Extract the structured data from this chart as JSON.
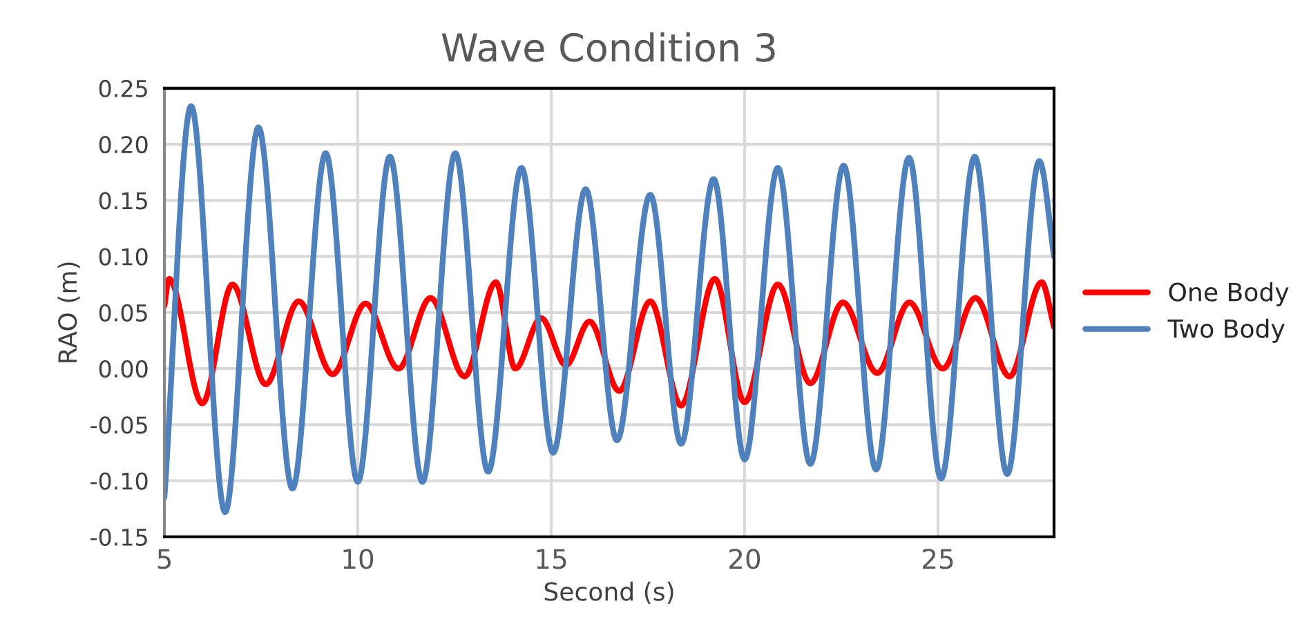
{
  "chart_data": {
    "type": "line",
    "title": "Wave Condition 3",
    "xlabel": "Second (s)",
    "ylabel": "RAO (m)",
    "xlim": [
      5,
      28
    ],
    "xticks": [
      5,
      10,
      15,
      20,
      25
    ],
    "ylim": [
      -0.15,
      0.25
    ],
    "yticks": [
      {
        "value": -0.15,
        "label": "-0.15"
      },
      {
        "value": -0.1,
        "label": "-0.10"
      },
      {
        "value": -0.05,
        "label": "-0.05"
      },
      {
        "value": 0,
        "label": "0.00"
      },
      {
        "value": 0.05,
        "label": "0.05"
      },
      {
        "value": 0.1,
        "label": "0.10"
      },
      {
        "value": 0.15,
        "label": "0.15"
      },
      {
        "value": 0.2,
        "label": "0.20"
      },
      {
        "value": 0.25,
        "label": "0.25"
      }
    ],
    "grid": true,
    "legend": "right",
    "marker": "none",
    "line_style": "solid",
    "series": [
      {
        "name": "One Body",
        "color": "#ff0000",
        "x": [
          5.0,
          5.12,
          5.98,
          6.76,
          7.62,
          8.47,
          9.35,
          10.2,
          11.05,
          11.88,
          12.76,
          13.57,
          14.07,
          14.74,
          15.38,
          15.99,
          16.76,
          17.56,
          18.36,
          19.23,
          20.0,
          20.86,
          21.7,
          22.54,
          23.43,
          24.26,
          25.12,
          25.97,
          26.85,
          27.68,
          28.0
        ],
        "values": [
          0.056,
          0.08,
          -0.031,
          0.075,
          -0.014,
          0.06,
          -0.005,
          0.058,
          0.0,
          0.063,
          -0.007,
          0.077,
          0.0,
          0.045,
          0.003,
          0.042,
          -0.02,
          0.06,
          -0.033,
          0.08,
          -0.03,
          0.075,
          -0.013,
          0.059,
          -0.004,
          0.059,
          0.0,
          0.063,
          -0.007,
          0.077,
          0.037
        ]
      },
      {
        "name": "Two Body",
        "color": "#4f81bd",
        "x": [
          5.0,
          5.69,
          6.57,
          7.43,
          8.31,
          9.17,
          10.0,
          10.83,
          11.67,
          12.52,
          13.37,
          14.23,
          15.05,
          15.89,
          16.7,
          17.56,
          18.36,
          19.2,
          20.0,
          20.86,
          21.7,
          22.56,
          23.4,
          24.25,
          25.08,
          25.95,
          26.79,
          27.62,
          28.0
        ],
        "values": [
          -0.115,
          0.234,
          -0.128,
          0.215,
          -0.107,
          0.192,
          -0.101,
          0.189,
          -0.101,
          0.192,
          -0.092,
          0.179,
          -0.075,
          0.16,
          -0.064,
          0.155,
          -0.067,
          0.169,
          -0.081,
          0.179,
          -0.085,
          0.181,
          -0.09,
          0.188,
          -0.098,
          0.189,
          -0.094,
          0.185,
          0.1
        ]
      }
    ]
  }
}
